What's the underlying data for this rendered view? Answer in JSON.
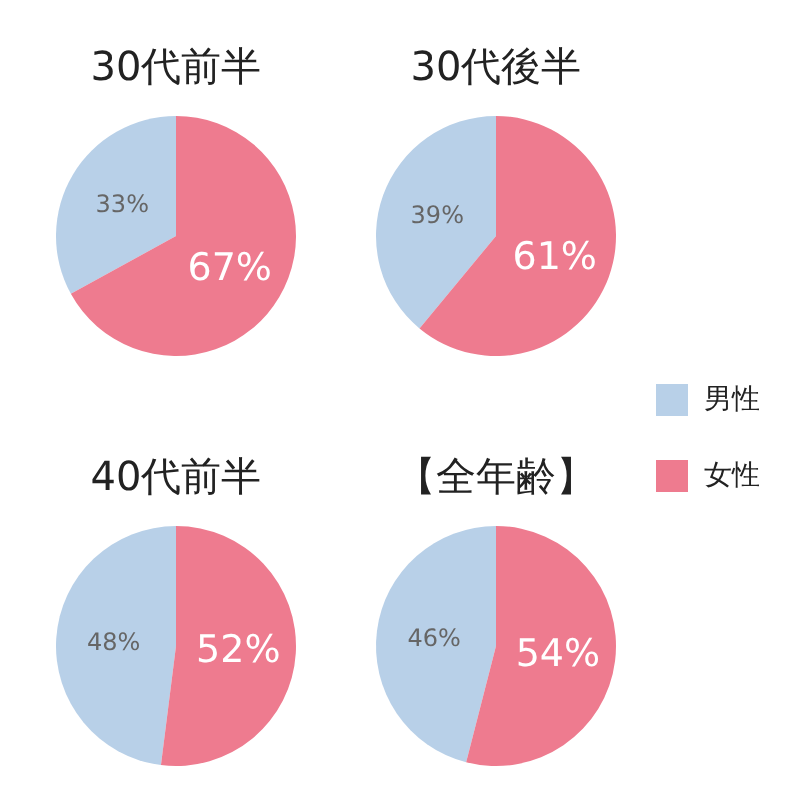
{
  "chart_data": [
    {
      "type": "pie",
      "title": "30代前半",
      "categories": [
        null,
        null
      ],
      "values": [
        33,
        67
      ],
      "colors": [
        "#b8d0e8",
        "#ee7b8f"
      ],
      "value_labels": [
        "33%",
        "67%"
      ]
    },
    {
      "type": "pie",
      "title": "30代後半",
      "categories": [
        "男性",
        "女性"
      ],
      "values": [
        39,
        61
      ],
      "colors": [
        "#b8d0e8",
        "#ee7b8f"
      ],
      "value_labels": [
        "39%",
        "61%"
      ],
      "legend": "right"
    },
    {
      "type": "pie",
      "title": "40代前半",
      "categories": [
        null,
        null
      ],
      "values": [
        48,
        52
      ],
      "colors": [
        "#b8d0e8",
        "#ee7b8f"
      ],
      "value_labels": [
        "48%",
        "52%"
      ]
    },
    {
      "type": "pie",
      "title": "【全年齢】",
      "categories": [
        null,
        null
      ],
      "values": [
        46,
        54
      ],
      "colors": [
        "#b8d0e8",
        "#ee7b8f"
      ],
      "value_labels": [
        "46%",
        "54%"
      ]
    }
  ]
}
